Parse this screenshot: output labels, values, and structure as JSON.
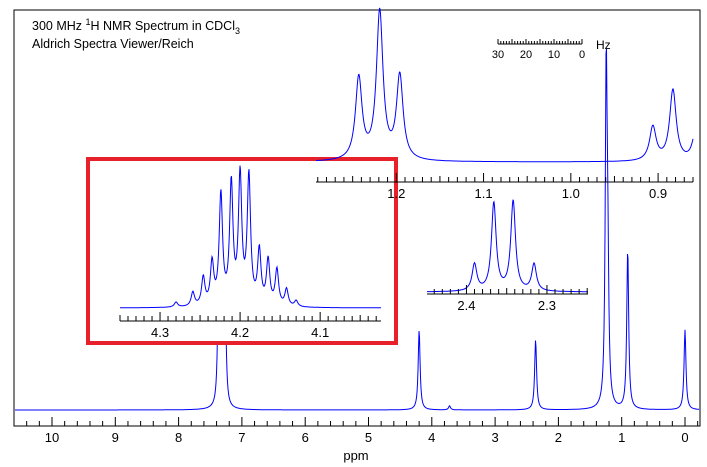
{
  "chart_data": {
    "type": "line",
    "title_line1_pre": "300 MHz ",
    "title_sup": "1",
    "title_line1_mid": "H NMR Spectrum in CDCl",
    "title_sub": "3",
    "subtitle": "Aldrich Spectra Viewer/Reich",
    "xlabel": "ppm",
    "xlim": [
      10.6,
      -0.2
    ],
    "x_ticks": [
      "10",
      "9",
      "8",
      "7",
      "6",
      "5",
      "4",
      "3",
      "2",
      "1",
      "0"
    ],
    "line_color": "#0000ff",
    "highlight_color": "#e8202a",
    "hz_scale": {
      "labels": [
        "30",
        "20",
        "10",
        "0"
      ],
      "unit": "Hz"
    },
    "main_peaks": [
      {
        "ppm": 7.37,
        "h": 110
      },
      {
        "ppm": 7.33,
        "h": 100
      },
      {
        "ppm": 7.29,
        "h": 90
      },
      {
        "ppm": 7.26,
        "h": 70
      },
      {
        "ppm": 4.2,
        "h": 80
      },
      {
        "ppm": 3.72,
        "h": 4
      },
      {
        "ppm": 2.36,
        "h": 70
      },
      {
        "ppm": 1.245,
        "h": 330
      },
      {
        "ppm": 1.22,
        "h": 120
      },
      {
        "ppm": 0.905,
        "h": 160
      },
      {
        "ppm": 0.0,
        "h": 80
      }
    ],
    "insets": [
      {
        "name": "inset-methyl",
        "xlim": [
          1.292,
          0.86
        ],
        "ticks": [
          "1.2",
          "1.1",
          "1.0",
          "0.9"
        ],
        "peaks": [
          {
            "ppm": 1.243,
            "h": 82
          },
          {
            "ppm": 1.219,
            "h": 148
          },
          {
            "ppm": 1.196,
            "h": 84
          },
          {
            "ppm": 0.906,
            "h": 34
          },
          {
            "ppm": 0.883,
            "h": 71
          },
          {
            "ppm": 0.857,
            "h": 29
          }
        ]
      },
      {
        "name": "inset-quartet",
        "xlim": [
          2.449,
          2.249
        ],
        "ticks": [
          "2.4",
          "2.3"
        ],
        "peaks": [
          {
            "ppm": 2.39,
            "h": 27
          },
          {
            "ppm": 2.366,
            "h": 88
          },
          {
            "ppm": 2.342,
            "h": 90
          },
          {
            "ppm": 2.316,
            "h": 27
          }
        ]
      },
      {
        "name": "inset-multiplet",
        "xlim": [
          4.35,
          4.024
        ],
        "ticks": [
          "4.3",
          "4.2",
          "4.1"
        ],
        "peaks": [
          {
            "ppm": 4.28,
            "h": 5
          },
          {
            "ppm": 4.259,
            "h": 14
          },
          {
            "ppm": 4.246,
            "h": 28
          },
          {
            "ppm": 4.235,
            "h": 42
          },
          {
            "ppm": 4.224,
            "h": 110
          },
          {
            "ppm": 4.211,
            "h": 120
          },
          {
            "ppm": 4.2,
            "h": 128
          },
          {
            "ppm": 4.189,
            "h": 128
          },
          {
            "ppm": 4.176,
            "h": 54
          },
          {
            "ppm": 4.165,
            "h": 45
          },
          {
            "ppm": 4.154,
            "h": 36
          },
          {
            "ppm": 4.142,
            "h": 17
          },
          {
            "ppm": 4.13,
            "h": 6
          }
        ]
      }
    ]
  }
}
